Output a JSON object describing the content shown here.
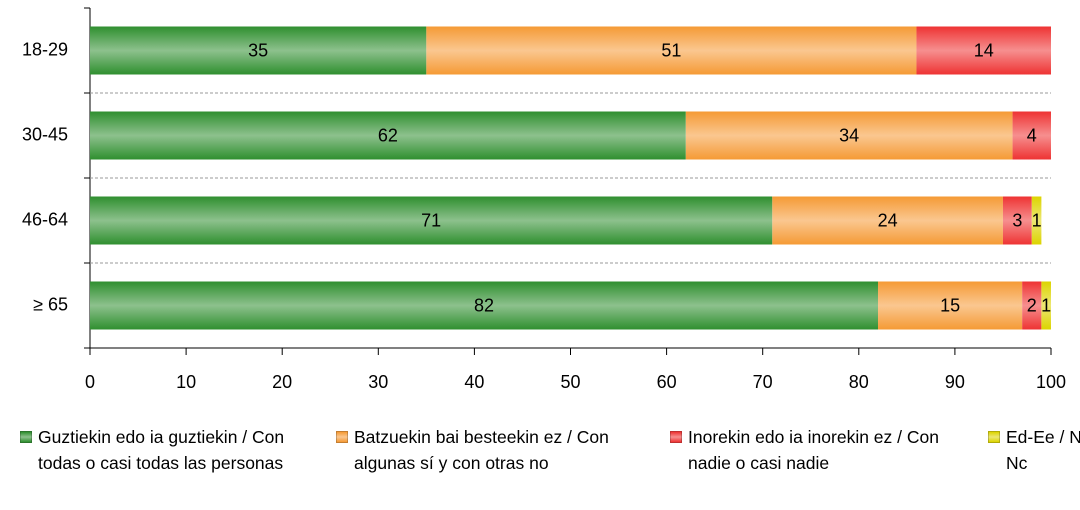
{
  "chart_data": {
    "type": "stacked-bar-horizontal",
    "categories": [
      "18-29",
      "30-45",
      "46-64",
      "≥ 65"
    ],
    "series": [
      {
        "name": "Guztiekin edo ia guztiekin / Con todas o casi todas las personas",
        "color": "#2f8f2f",
        "values": [
          35,
          62,
          71,
          82
        ]
      },
      {
        "name": "Batzuekin bai besteekin ez / Con algunas sí y con otras no",
        "color": "#f59a35",
        "values": [
          51,
          34,
          24,
          15
        ]
      },
      {
        "name": "Inorekin edo ia inorekin ez / Con nadie o casi nadie",
        "color": "#ee3333",
        "values": [
          14,
          4,
          3,
          2
        ]
      },
      {
        "name": "Ed-Ee / Ns-Nc",
        "color": "#dcd400",
        "values": [
          null,
          null,
          1,
          1
        ]
      }
    ],
    "xlim": [
      0,
      100
    ],
    "xticks": [
      0,
      10,
      20,
      30,
      40,
      50,
      60,
      70,
      80,
      90,
      100
    ],
    "legend": "bottom"
  }
}
